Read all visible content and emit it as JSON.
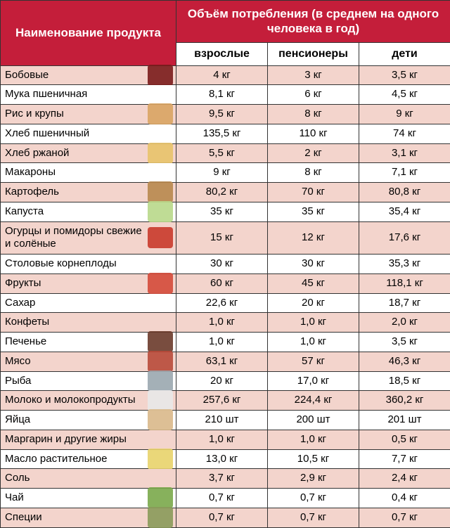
{
  "header": {
    "product_label": "Наименование продукта",
    "volume_label": "Объём потребления (в среднем на одного человека в год)",
    "cols": {
      "adults": "взрослые",
      "pensioners": "пенсионеры",
      "children": "дети"
    }
  },
  "stripe_color": "#f3d4cc",
  "header_bg": "#c41e3a",
  "rows": [
    {
      "name": "Бобовые",
      "adults": "4 кг",
      "pensioners": "3 кг",
      "children": "3,5 кг",
      "stripe": true,
      "icon_color": "#7a1b1b"
    },
    {
      "name": "Мука пшеничная",
      "adults": "8,1 кг",
      "pensioners": "6 кг",
      "children": "4,5 кг",
      "stripe": false,
      "icon_color": ""
    },
    {
      "name": "Рис и крупы",
      "adults": "9,5 кг",
      "pensioners": "8 кг",
      "children": "9 кг",
      "stripe": true,
      "icon_color": "#d9a463"
    },
    {
      "name": "Хлеб пшеничный",
      "adults": "135,5 кг",
      "pensioners": "110 кг",
      "children": "74 кг",
      "stripe": false,
      "icon_color": ""
    },
    {
      "name": "Хлеб ржаной",
      "adults": "5,5 кг",
      "pensioners": "2 кг",
      "children": "3,1 кг",
      "stripe": true,
      "icon_color": "#e8c36a"
    },
    {
      "name": "Макароны",
      "adults": "9 кг",
      "pensioners": "8 кг",
      "children": "7,1 кг",
      "stripe": false,
      "icon_color": ""
    },
    {
      "name": "Картофель",
      "adults": "80,2 кг",
      "pensioners": "70 кг",
      "children": "80,8 кг",
      "stripe": true,
      "icon_color": "#b8884e"
    },
    {
      "name": "Капуста",
      "adults": "35 кг",
      "pensioners": "35 кг",
      "children": "35,4 кг",
      "stripe": false,
      "icon_color": "#b8d88a"
    },
    {
      "name": "Огурцы и помидоры свежие и солёные",
      "adults": "15 кг",
      "pensioners": "12 кг",
      "children": "17,6 кг",
      "stripe": true,
      "icon_color": "#c93a2b"
    },
    {
      "name": "Столовые корнеплоды",
      "adults": "30 кг",
      "pensioners": "30 кг",
      "children": "35,3 кг",
      "stripe": false,
      "icon_color": ""
    },
    {
      "name": "Фрукты",
      "adults": "60 кг",
      "pensioners": "45 кг",
      "children": "118,1 кг",
      "stripe": true,
      "icon_color": "#d44a3a"
    },
    {
      "name": "Сахар",
      "adults": "22,6 кг",
      "pensioners": "20 кг",
      "children": "18,7 кг",
      "stripe": false,
      "icon_color": ""
    },
    {
      "name": "Конфеты",
      "adults": "1,0 кг",
      "pensioners": "1,0 кг",
      "children": "2,0 кг",
      "stripe": true,
      "icon_color": ""
    },
    {
      "name": "Печенье",
      "adults": "1,0 кг",
      "pensioners": "1,0 кг",
      "children": "3,5 кг",
      "stripe": false,
      "icon_color": "#6a3a2a"
    },
    {
      "name": "Мясо",
      "adults": "63,1 кг",
      "pensioners": "57 кг",
      "children": "46,3 кг",
      "stripe": true,
      "icon_color": "#b84a3a"
    },
    {
      "name": "Рыба",
      "adults": "20 кг",
      "pensioners": "17,0 кг",
      "children": "18,5 кг",
      "stripe": false,
      "icon_color": "#9aa7af"
    },
    {
      "name": "Молоко и молокопродукты",
      "adults": "257,6 кг",
      "pensioners": "224,4 кг",
      "children": "360,2 кг",
      "stripe": true,
      "icon_color": "#e8e8e8"
    },
    {
      "name": "Яйца",
      "adults": "210 шт",
      "pensioners": "200 шт",
      "children": "201 шт",
      "stripe": false,
      "icon_color": "#d9b88a"
    },
    {
      "name": "Маргарин и другие жиры",
      "adults": "1,0 кг",
      "pensioners": "1,0 кг",
      "children": "0,5 кг",
      "stripe": true,
      "icon_color": ""
    },
    {
      "name": "Масло растительное",
      "adults": "13,0 кг",
      "pensioners": "10,5 кг",
      "children": "7,7 кг",
      "stripe": false,
      "icon_color": "#e8d36a"
    },
    {
      "name": "Соль",
      "adults": "3,7 кг",
      "pensioners": "2,9 кг",
      "children": "2,4 кг",
      "stripe": true,
      "icon_color": ""
    },
    {
      "name": "Чай",
      "adults": "0,7 кг",
      "pensioners": "0,7 кг",
      "children": "0,4 кг",
      "stripe": false,
      "icon_color": "#7aa84a"
    },
    {
      "name": "Специи",
      "adults": "0,7 кг",
      "pensioners": "0,7 кг",
      "children": "0,7 кг",
      "stripe": true,
      "icon_color": "#8a9a5a"
    }
  ]
}
